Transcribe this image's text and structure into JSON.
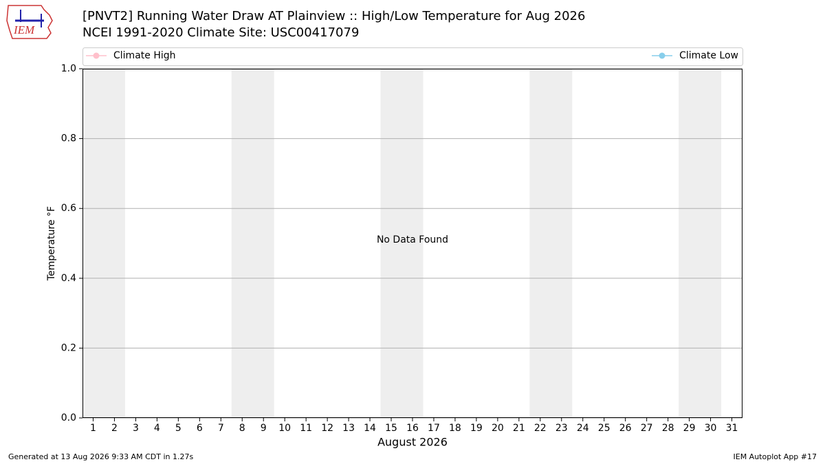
{
  "chart_data": {
    "type": "line",
    "title": "[PNVT2] Running Water Draw  AT Plainview :: High/Low Temperature for Aug 2026",
    "subtitle": "NCEI 1991-2020 Climate Site: USC00417079",
    "x_label": "August 2026",
    "y_label": "Temperature °F",
    "annotation": "No Data Found",
    "x": [
      1,
      2,
      3,
      4,
      5,
      6,
      7,
      8,
      9,
      10,
      11,
      12,
      13,
      14,
      15,
      16,
      17,
      18,
      19,
      20,
      21,
      22,
      23,
      24,
      25,
      26,
      27,
      28,
      29,
      30,
      31
    ],
    "series": [
      {
        "name": "Climate High",
        "color": "#ffc0cb",
        "values": [
          null,
          null,
          null,
          null,
          null,
          null,
          null,
          null,
          null,
          null,
          null,
          null,
          null,
          null,
          null,
          null,
          null,
          null,
          null,
          null,
          null,
          null,
          null,
          null,
          null,
          null,
          null,
          null,
          null,
          null,
          null
        ]
      },
      {
        "name": "Climate Low",
        "color": "#87ceeb",
        "values": [
          null,
          null,
          null,
          null,
          null,
          null,
          null,
          null,
          null,
          null,
          null,
          null,
          null,
          null,
          null,
          null,
          null,
          null,
          null,
          null,
          null,
          null,
          null,
          null,
          null,
          null,
          null,
          null,
          null,
          null,
          null
        ]
      }
    ],
    "shaded_spans": [
      [
        1,
        2
      ],
      [
        8,
        9
      ],
      [
        15,
        16
      ],
      [
        22,
        23
      ],
      [
        29,
        30
      ]
    ],
    "shade_color": "#eeeeee",
    "xlim": [
      0.5,
      31.5
    ],
    "xticks": [
      1,
      2,
      3,
      4,
      5,
      6,
      7,
      8,
      9,
      10,
      11,
      12,
      13,
      14,
      15,
      16,
      17,
      18,
      19,
      20,
      21,
      22,
      23,
      24,
      25,
      26,
      27,
      28,
      29,
      30,
      31
    ],
    "ylim": [
      0,
      1
    ],
    "yticks": [
      {
        "value": 0,
        "label": "0.0"
      },
      {
        "value": 0.2,
        "label": "0.2"
      },
      {
        "value": 0.4,
        "label": "0.4"
      },
      {
        "value": 0.6,
        "label": "0.6"
      },
      {
        "value": 0.8,
        "label": "0.8"
      },
      {
        "value": 1,
        "label": "1.0"
      }
    ],
    "grid": true
  },
  "logo": "IEM",
  "footer": {
    "left": "Generated at 13 Aug 2026 9:33 AM CDT in 1.27s",
    "right": "IEM Autoplot App #17"
  }
}
